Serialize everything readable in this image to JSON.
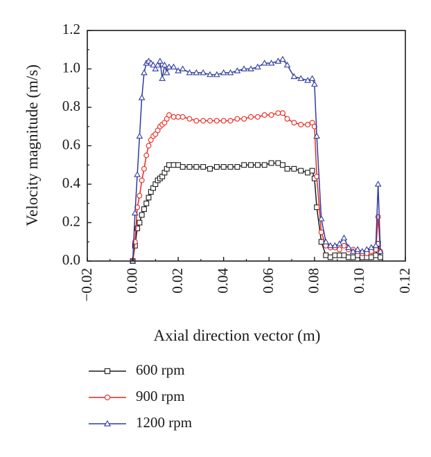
{
  "chart_data": {
    "type": "line",
    "xlabel": "Axial direction vector (m)",
    "ylabel": "Velocity magnitude (m/s)",
    "xlim": [
      -0.02,
      0.12
    ],
    "ylim": [
      0.0,
      1.2
    ],
    "x_ticks": [
      "−0.02",
      "0.00",
      "0.02",
      "0.04",
      "0.06",
      "0.08",
      "0.10",
      "0.12"
    ],
    "y_ticks": [
      "0.0",
      "0.2",
      "0.4",
      "0.6",
      "0.8",
      "1.0",
      "1.2"
    ],
    "grid": false,
    "legend_position": "below",
    "series": [
      {
        "name": "600 rpm",
        "color": "#1a1a1a",
        "marker": "square",
        "x": [
          0.0,
          0.001,
          0.002,
          0.003,
          0.004,
          0.005,
          0.006,
          0.007,
          0.008,
          0.009,
          0.01,
          0.011,
          0.012,
          0.013,
          0.014,
          0.015,
          0.016,
          0.018,
          0.02,
          0.022,
          0.025,
          0.028,
          0.031,
          0.034,
          0.037,
          0.04,
          0.043,
          0.046,
          0.049,
          0.052,
          0.055,
          0.058,
          0.061,
          0.064,
          0.066,
          0.068,
          0.071,
          0.074,
          0.077,
          0.079,
          0.08,
          0.081,
          0.083,
          0.085,
          0.087,
          0.089,
          0.091,
          0.093,
          0.095,
          0.097,
          0.099,
          0.101,
          0.103,
          0.105,
          0.107,
          0.108,
          0.109
        ],
        "y": [
          0.0,
          0.08,
          0.17,
          0.2,
          0.24,
          0.27,
          0.3,
          0.33,
          0.36,
          0.38,
          0.4,
          0.42,
          0.43,
          0.44,
          0.46,
          0.48,
          0.5,
          0.5,
          0.5,
          0.49,
          0.49,
          0.49,
          0.49,
          0.48,
          0.49,
          0.49,
          0.49,
          0.49,
          0.5,
          0.5,
          0.5,
          0.5,
          0.51,
          0.51,
          0.5,
          0.48,
          0.48,
          0.47,
          0.46,
          0.47,
          0.43,
          0.28,
          0.1,
          0.03,
          0.02,
          0.03,
          0.03,
          0.03,
          0.02,
          0.02,
          0.03,
          0.02,
          0.02,
          0.02,
          0.03,
          0.09,
          0.02
        ]
      },
      {
        "name": "900 rpm",
        "color": "#e8271c",
        "marker": "circle",
        "x": [
          0.0,
          0.001,
          0.002,
          0.003,
          0.004,
          0.005,
          0.006,
          0.007,
          0.008,
          0.009,
          0.01,
          0.011,
          0.012,
          0.013,
          0.014,
          0.015,
          0.016,
          0.018,
          0.02,
          0.022,
          0.025,
          0.028,
          0.031,
          0.034,
          0.037,
          0.04,
          0.043,
          0.046,
          0.049,
          0.052,
          0.055,
          0.058,
          0.061,
          0.064,
          0.066,
          0.068,
          0.071,
          0.074,
          0.077,
          0.079,
          0.08,
          0.081,
          0.083,
          0.085,
          0.087,
          0.089,
          0.091,
          0.093,
          0.095,
          0.097,
          0.099,
          0.101,
          0.103,
          0.105,
          0.107,
          0.108,
          0.109
        ],
        "y": [
          0.0,
          0.1,
          0.28,
          0.34,
          0.42,
          0.48,
          0.55,
          0.6,
          0.63,
          0.65,
          0.66,
          0.68,
          0.7,
          0.71,
          0.72,
          0.74,
          0.76,
          0.75,
          0.75,
          0.75,
          0.74,
          0.73,
          0.73,
          0.73,
          0.73,
          0.73,
          0.73,
          0.74,
          0.74,
          0.75,
          0.75,
          0.76,
          0.76,
          0.77,
          0.77,
          0.74,
          0.72,
          0.71,
          0.71,
          0.72,
          0.7,
          0.44,
          0.15,
          0.08,
          0.07,
          0.07,
          0.06,
          0.08,
          0.06,
          0.06,
          0.05,
          0.04,
          0.04,
          0.05,
          0.06,
          0.23,
          0.05
        ]
      },
      {
        "name": "1200 rpm",
        "color": "#2e3a9e",
        "marker": "triangle",
        "x": [
          0.0,
          0.001,
          0.002,
          0.003,
          0.004,
          0.005,
          0.006,
          0.007,
          0.008,
          0.009,
          0.01,
          0.011,
          0.012,
          0.013,
          0.014,
          0.015,
          0.016,
          0.018,
          0.02,
          0.022,
          0.025,
          0.028,
          0.031,
          0.034,
          0.037,
          0.04,
          0.043,
          0.046,
          0.049,
          0.052,
          0.055,
          0.058,
          0.061,
          0.064,
          0.066,
          0.068,
          0.071,
          0.074,
          0.077,
          0.079,
          0.08,
          0.081,
          0.083,
          0.085,
          0.087,
          0.089,
          0.091,
          0.093,
          0.095,
          0.097,
          0.099,
          0.101,
          0.103,
          0.105,
          0.107,
          0.108,
          0.109
        ],
        "y": [
          0.0,
          0.25,
          0.45,
          0.65,
          0.85,
          0.98,
          1.03,
          1.04,
          1.03,
          1.02,
          1.0,
          1.02,
          1.04,
          0.95,
          1.02,
          0.98,
          1.01,
          1.01,
          0.99,
          1.0,
          0.98,
          0.98,
          0.98,
          0.97,
          0.97,
          0.98,
          0.98,
          0.99,
          1.0,
          1.0,
          1.01,
          1.03,
          1.03,
          1.04,
          1.05,
          1.02,
          0.96,
          0.95,
          0.94,
          0.95,
          0.92,
          0.65,
          0.22,
          0.1,
          0.08,
          0.08,
          0.09,
          0.12,
          0.07,
          0.05,
          0.06,
          0.05,
          0.06,
          0.07,
          0.08,
          0.4,
          0.05
        ]
      }
    ]
  }
}
